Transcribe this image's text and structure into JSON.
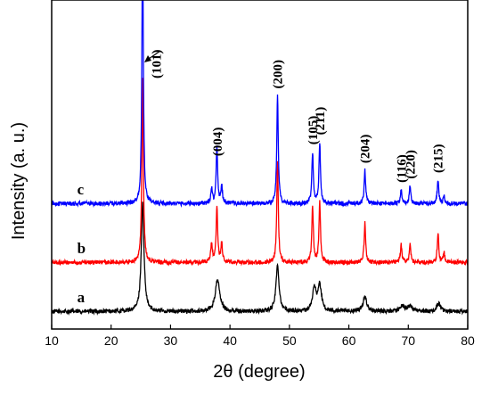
{
  "chart_data": {
    "type": "line",
    "xlabel": "2θ (degree)",
    "ylabel": "Intensity (a. u.)",
    "xlim": [
      10,
      80
    ],
    "x_ticks": [
      10,
      20,
      30,
      40,
      50,
      60,
      70,
      80
    ],
    "y_ticks_shown": false,
    "grid": false,
    "series": [
      {
        "name": "a",
        "color": "#000000",
        "baseline": 0.0,
        "peaks": [
          {
            "x": 25.3,
            "height": 0.55,
            "width": 0.55
          },
          {
            "x": 37.9,
            "height": 0.16,
            "width": 0.9
          },
          {
            "x": 48.0,
            "height": 0.23,
            "width": 0.65
          },
          {
            "x": 54.2,
            "height": 0.12,
            "width": 0.7
          },
          {
            "x": 55.1,
            "height": 0.13,
            "width": 0.7
          },
          {
            "x": 62.7,
            "height": 0.07,
            "width": 0.8
          },
          {
            "x": 69.0,
            "height": 0.03,
            "width": 0.8
          },
          {
            "x": 70.3,
            "height": 0.03,
            "width": 0.8
          },
          {
            "x": 75.1,
            "height": 0.04,
            "width": 0.8
          }
        ]
      },
      {
        "name": "b",
        "color": "#ff0000",
        "baseline": 0.25,
        "peaks": [
          {
            "x": 25.3,
            "height": 0.95,
            "width": 0.3
          },
          {
            "x": 36.9,
            "height": 0.1,
            "width": 0.3
          },
          {
            "x": 37.8,
            "height": 0.28,
            "width": 0.3
          },
          {
            "x": 38.6,
            "height": 0.1,
            "width": 0.3
          },
          {
            "x": 48.0,
            "height": 0.52,
            "width": 0.3
          },
          {
            "x": 53.9,
            "height": 0.29,
            "width": 0.3
          },
          {
            "x": 55.1,
            "height": 0.31,
            "width": 0.3
          },
          {
            "x": 62.7,
            "height": 0.2,
            "width": 0.3
          },
          {
            "x": 68.8,
            "height": 0.09,
            "width": 0.3
          },
          {
            "x": 70.3,
            "height": 0.1,
            "width": 0.3
          },
          {
            "x": 75.0,
            "height": 0.15,
            "width": 0.3
          },
          {
            "x": 76.0,
            "height": 0.05,
            "width": 0.3
          }
        ]
      },
      {
        "name": "c",
        "color": "#0000ff",
        "baseline": 0.55,
        "peaks": [
          {
            "x": 25.3,
            "height": 1.4,
            "width": 0.28
          },
          {
            "x": 36.9,
            "height": 0.08,
            "width": 0.3
          },
          {
            "x": 37.8,
            "height": 0.29,
            "width": 0.3
          },
          {
            "x": 38.6,
            "height": 0.09,
            "width": 0.3
          },
          {
            "x": 48.0,
            "height": 0.55,
            "width": 0.3
          },
          {
            "x": 53.9,
            "height": 0.26,
            "width": 0.3
          },
          {
            "x": 55.1,
            "height": 0.31,
            "width": 0.3
          },
          {
            "x": 62.7,
            "height": 0.17,
            "width": 0.3
          },
          {
            "x": 68.8,
            "height": 0.07,
            "width": 0.3
          },
          {
            "x": 70.3,
            "height": 0.09,
            "width": 0.3
          },
          {
            "x": 75.0,
            "height": 0.12,
            "width": 0.3
          },
          {
            "x": 76.0,
            "height": 0.04,
            "width": 0.3
          }
        ]
      }
    ],
    "annotations": [
      {
        "text": "(101)",
        "x": 25.3
      },
      {
        "text": "(004)",
        "x": 37.9
      },
      {
        "text": "(200)",
        "x": 48.0
      },
      {
        "text": "(105)",
        "x": 53.9
      },
      {
        "text": "(211)",
        "x": 55.1
      },
      {
        "text": "(204)",
        "x": 62.7
      },
      {
        "text": "(116)",
        "x": 68.8
      },
      {
        "text": "(220)",
        "x": 70.3
      },
      {
        "text": "(215)",
        "x": 75.0
      }
    ]
  }
}
